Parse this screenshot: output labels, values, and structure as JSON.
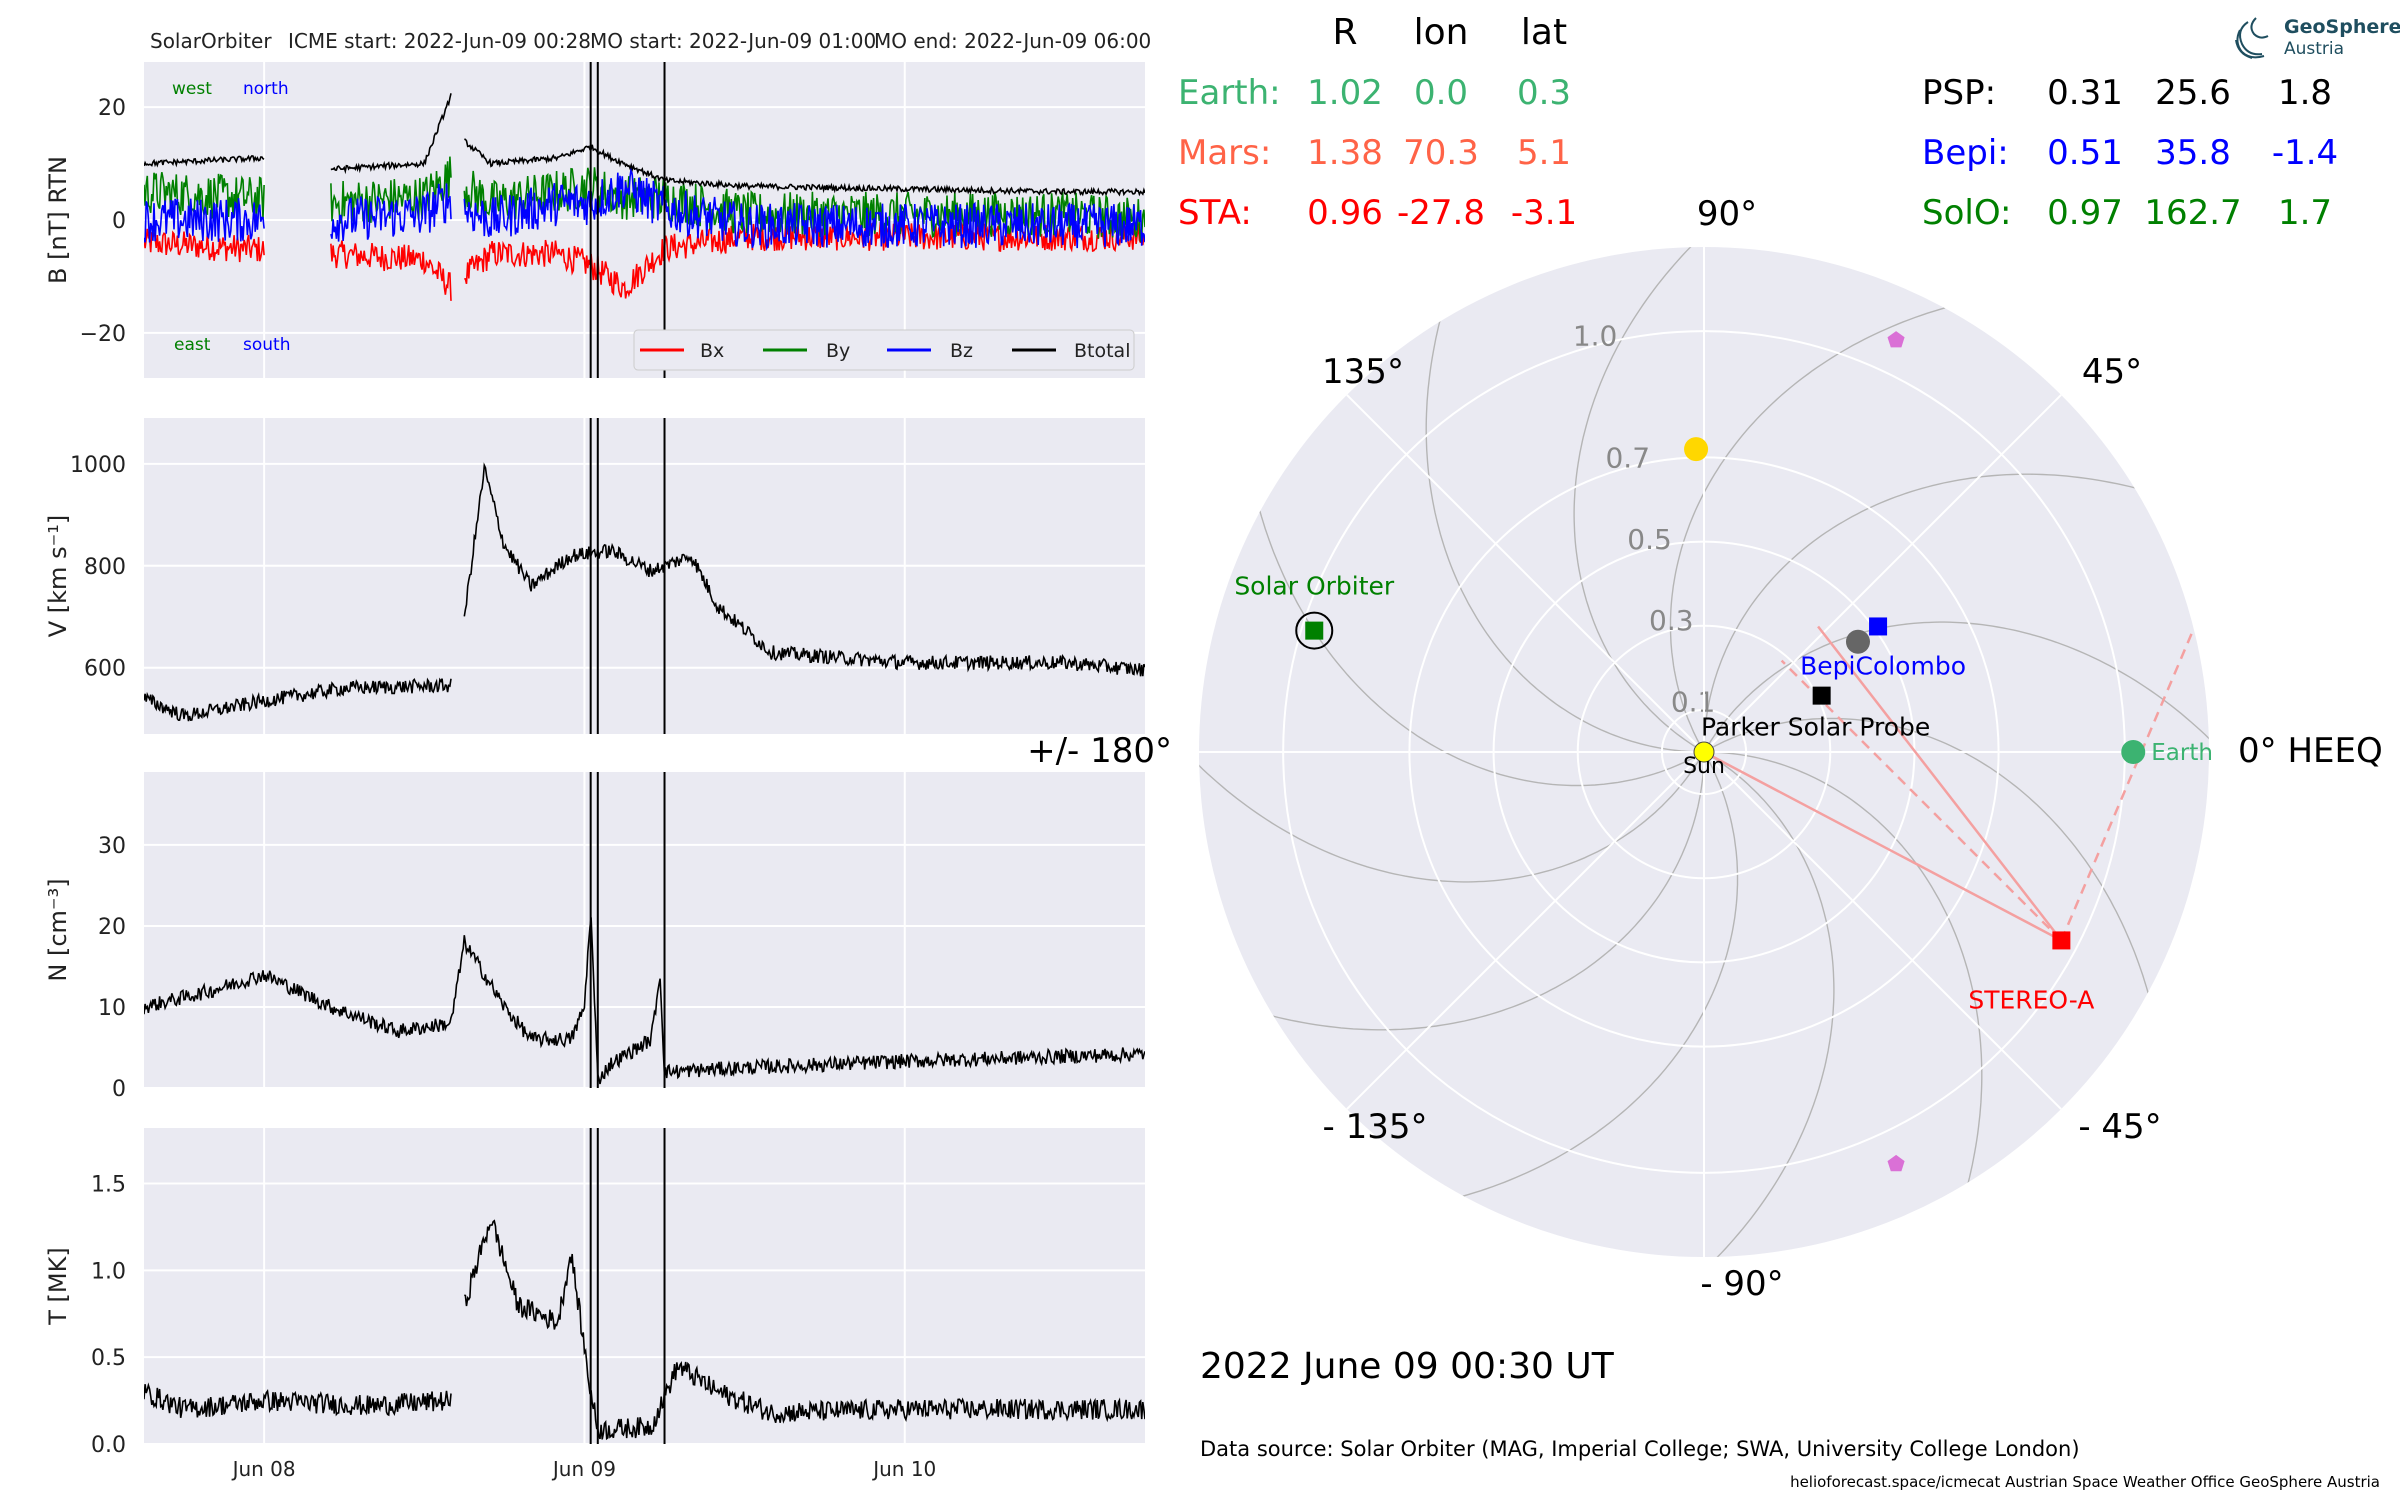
{
  "header": {
    "spacecraft": "SolarOrbiter",
    "icme_start": "ICME start: 2022-Jun-09 00:28",
    "mo_start": "MO start: 2022-Jun-09 01:00",
    "mo_end": "MO end: 2022-Jun-09 06:00"
  },
  "logo": {
    "line1": "GeoSphere",
    "line2": "Austria"
  },
  "position_table": {
    "columns": [
      "R",
      "lon",
      "lat"
    ],
    "left_rows": [
      {
        "name": "Earth:",
        "R": "1.02",
        "lon": "0.0",
        "lat": "0.3",
        "color": "#3cb371"
      },
      {
        "name": "Mars:",
        "R": "1.38",
        "lon": "70.3",
        "lat": "5.1",
        "color": "#ff6347"
      },
      {
        "name": "STA:",
        "R": "0.96",
        "lon": "-27.8",
        "lat": "-3.1",
        "color": "#ff0000"
      }
    ],
    "right_rows": [
      {
        "name": "PSP:",
        "R": "0.31",
        "lon": "25.6",
        "lat": "1.8",
        "color": "#000000"
      },
      {
        "name": "Bepi:",
        "R": "0.51",
        "lon": "35.8",
        "lat": "-1.4",
        "color": "#0000ff"
      },
      {
        "name": "SolO:",
        "R": "0.97",
        "lon": "162.7",
        "lat": "1.7",
        "color": "#008000"
      }
    ]
  },
  "polar": {
    "angle_labels": [
      "90°",
      "45°",
      "0° HEEQ",
      "- 45°",
      "- 90°",
      "- 135°",
      "+/- 180°",
      "135°"
    ],
    "radial_labels": [
      "0.1",
      "0.3",
      "0.5",
      "0.7",
      "1.0"
    ],
    "bodies": [
      {
        "label": "Sun",
        "r": 0.0,
        "lon": 0.0,
        "color": "#ffff00"
      },
      {
        "label": "Earth",
        "r": 1.02,
        "lon": 0.0,
        "color": "#3cb371"
      },
      {
        "label": "Parker Solar Probe",
        "r": 0.31,
        "lon": 25.6,
        "color": "#000000"
      },
      {
        "label": "BepiColombo",
        "r": 0.51,
        "lon": 35.8,
        "color": "#0000ff"
      },
      {
        "label": "Solar Orbiter",
        "r": 0.97,
        "lon": 162.7,
        "color": "#008000"
      },
      {
        "label": "STEREO-A",
        "r": 0.96,
        "lon": -27.8,
        "color": "#ff0000"
      }
    ],
    "extra_markers": [
      {
        "kind": "yellow-dot",
        "r": 0.72,
        "lon": 91.5,
        "color": "#ffd700"
      },
      {
        "kind": "grey-dot",
        "r": 0.45,
        "lon": 35.6,
        "color": "#666666"
      },
      {
        "kind": "pentagon",
        "r": 1.08,
        "lon": 65.0,
        "color": "#da70d6"
      },
      {
        "kind": "pentagon",
        "r": 1.08,
        "lon": -65.0,
        "color": "#da70d6"
      }
    ]
  },
  "date_text": "2022 June 09  00:30 UT",
  "data_source": "Data source: Solar Orbiter (MAG, Imperial College; SWA, University College London)",
  "footer": "helioforecast.space/icmecat   Austrian Space Weather Office   GeoSphere Austria",
  "chart_data": [
    {
      "type": "line",
      "panel": "magnetic field",
      "ylabel": "B [nT] RTN",
      "ylim": [
        -28,
        28
      ],
      "yticks": [
        "20",
        "0",
        "−20"
      ],
      "x_tick_labels": [
        "Jun 08",
        "Jun 09",
        "Jun 10"
      ],
      "x_range": [
        "2022-06-07 15:00",
        "2022-06-10 18:00"
      ],
      "corner_labels": {
        "west": "west",
        "north": "north",
        "east": "east",
        "south": "south"
      },
      "legend_placement": "lower-right",
      "event_lines": [
        "2022-06-09 00:28",
        "2022-06-09 01:00",
        "2022-06-09 06:00"
      ],
      "data_gaps": [
        [
          "2022-06-08 00:00",
          "2022-06-08 05:00"
        ],
        [
          "2022-06-08 14:00",
          "2022-06-08 15:00"
        ]
      ],
      "series": [
        {
          "name": "Bx",
          "color": "#ff0000",
          "x": [
            "2022-06-07 15:00",
            "2022-06-08 05:00",
            "2022-06-08 12:00",
            "2022-06-08 14:00",
            "2022-06-08 15:00",
            "2022-06-08 17:00",
            "2022-06-08 22:00",
            "2022-06-09 00:28",
            "2022-06-09 03:00",
            "2022-06-09 06:00",
            "2022-06-09 12:00",
            "2022-06-10 00:00",
            "2022-06-10 12:00",
            "2022-06-10 18:00"
          ],
          "values": [
            -4,
            -6,
            -7,
            -12,
            -10,
            -6,
            -6,
            -8,
            -12,
            -5,
            -3,
            -3,
            -3,
            -3
          ],
          "noise": 2.5
        },
        {
          "name": "By",
          "color": "#008000",
          "x": [
            "2022-06-07 15:00",
            "2022-06-08 05:00",
            "2022-06-08 12:00",
            "2022-06-08 14:00",
            "2022-06-08 15:00",
            "2022-06-08 17:00",
            "2022-06-08 22:00",
            "2022-06-09 00:28",
            "2022-06-09 03:00",
            "2022-06-09 06:00",
            "2022-06-09 12:00",
            "2022-06-10 00:00",
            "2022-06-10 12:00",
            "2022-06-10 18:00"
          ],
          "values": [
            5,
            3,
            4,
            8,
            6,
            3,
            5,
            6,
            4,
            4,
            1,
            1,
            1,
            0
          ],
          "noise": 4.0
        },
        {
          "name": "Bz",
          "color": "#0000ff",
          "x": [
            "2022-06-07 15:00",
            "2022-06-08 05:00",
            "2022-06-08 12:00",
            "2022-06-08 14:00",
            "2022-06-08 15:00",
            "2022-06-08 17:00",
            "2022-06-08 22:00",
            "2022-06-09 00:28",
            "2022-06-09 03:00",
            "2022-06-09 06:00",
            "2022-06-09 12:00",
            "2022-06-10 00:00",
            "2022-06-10 12:00",
            "2022-06-10 18:00"
          ],
          "values": [
            0,
            0,
            1,
            4,
            2,
            0,
            3,
            3,
            6,
            2,
            -1,
            -1,
            -1,
            -1
          ],
          "noise": 4.0
        },
        {
          "name": "Btotal",
          "color": "#000000",
          "x": [
            "2022-06-07 15:00",
            "2022-06-08 00:00",
            "2022-06-08 05:00",
            "2022-06-08 12:00",
            "2022-06-08 14:00",
            "2022-06-08 15:00",
            "2022-06-08 17:00",
            "2022-06-08 22:00",
            "2022-06-09 00:28",
            "2022-06-09 02:00",
            "2022-06-09 06:00",
            "2022-06-09 12:00",
            "2022-06-10 00:00",
            "2022-06-10 12:00",
            "2022-06-10 18:00"
          ],
          "values": [
            10,
            11,
            9,
            10,
            22,
            14,
            10,
            11,
            13,
            11,
            7,
            6,
            5.5,
            5,
            5
          ],
          "noise": 0.5
        }
      ]
    },
    {
      "type": "line",
      "panel": "speed",
      "ylabel": "V [km s⁻¹]",
      "ylim": [
        470,
        1090
      ],
      "yticks": [
        "1000",
        "800",
        "600"
      ],
      "x_tick_labels": [
        "Jun 08",
        "Jun 09",
        "Jun 10"
      ],
      "event_lines": [
        "2022-06-09 00:28",
        "2022-06-09 01:00",
        "2022-06-09 06:00"
      ],
      "data_gaps": [
        [
          "2022-06-08 14:00",
          "2022-06-08 15:00"
        ]
      ],
      "series": [
        {
          "name": "V",
          "color": "#000000",
          "x": [
            "2022-06-07 15:00",
            "2022-06-07 18:00",
            "2022-06-08 00:00",
            "2022-06-08 06:00",
            "2022-06-08 14:00",
            "2022-06-08 15:00",
            "2022-06-08 16:30",
            "2022-06-08 18:00",
            "2022-06-08 20:00",
            "2022-06-08 23:00",
            "2022-06-09 02:00",
            "2022-06-09 05:00",
            "2022-06-09 08:00",
            "2022-06-09 10:00",
            "2022-06-09 14:00",
            "2022-06-10 00:00",
            "2022-06-10 12:00",
            "2022-06-10 18:00"
          ],
          "values": [
            540,
            505,
            535,
            560,
            565,
            700,
            990,
            840,
            760,
            820,
            830,
            790,
            820,
            720,
            630,
            610,
            610,
            595
          ],
          "noise": 14
        }
      ]
    },
    {
      "type": "line",
      "panel": "density",
      "ylabel": "N [cm⁻³]",
      "ylim": [
        0,
        39
      ],
      "yticks": [
        "30",
        "20",
        "10",
        "0"
      ],
      "x_tick_labels": [
        "Jun 08",
        "Jun 09",
        "Jun 10"
      ],
      "event_lines": [
        "2022-06-09 00:28",
        "2022-06-09 01:00",
        "2022-06-09 06:00"
      ],
      "series": [
        {
          "name": "N",
          "color": "#000000",
          "x": [
            "2022-06-07 15:00",
            "2022-06-07 20:00",
            "2022-06-08 00:00",
            "2022-06-08 05:00",
            "2022-06-08 10:00",
            "2022-06-08 14:00",
            "2022-06-08 15:00",
            "2022-06-08 18:00",
            "2022-06-08 20:00",
            "2022-06-08 23:00",
            "2022-06-09 00:00",
            "2022-06-09 00:28",
            "2022-06-09 01:00",
            "2022-06-09 02:00",
            "2022-06-09 05:00",
            "2022-06-09 05:40",
            "2022-06-09 06:00",
            "2022-06-09 12:00",
            "2022-06-10 00:00",
            "2022-06-10 18:00"
          ],
          "values": [
            10,
            12,
            14,
            10,
            7,
            8,
            18,
            10,
            6,
            6,
            10,
            22,
            1,
            3,
            6,
            14,
            2,
            2.5,
            3.3,
            4.2
          ],
          "noise": 0.9
        }
      ]
    },
    {
      "type": "line",
      "panel": "temperature",
      "ylabel": "T [MK]",
      "ylim": [
        0,
        1.82
      ],
      "yticks": [
        "1.5",
        "1.0",
        "0.5",
        "0.0"
      ],
      "x_tick_labels": [
        "Jun 08",
        "Jun 09",
        "Jun 10"
      ],
      "event_lines": [
        "2022-06-09 00:28",
        "2022-06-09 01:00",
        "2022-06-09 06:00"
      ],
      "data_gaps": [
        [
          "2022-06-08 14:00",
          "2022-06-08 15:00"
        ]
      ],
      "series": [
        {
          "name": "T",
          "color": "#000000",
          "x": [
            "2022-06-07 15:00",
            "2022-06-07 18:00",
            "2022-06-08 00:00",
            "2022-06-08 08:00",
            "2022-06-08 14:00",
            "2022-06-08 15:00",
            "2022-06-08 17:00",
            "2022-06-08 19:00",
            "2022-06-08 22:00",
            "2022-06-08 23:00",
            "2022-06-09 00:28",
            "2022-06-09 01:00",
            "2022-06-09 05:00",
            "2022-06-09 07:00",
            "2022-06-09 10:00",
            "2022-06-09 14:00",
            "2022-06-10 00:00",
            "2022-06-10 18:00"
          ],
          "values": [
            0.3,
            0.2,
            0.25,
            0.22,
            0.25,
            0.8,
            1.3,
            0.8,
            0.7,
            1.1,
            0.3,
            0.08,
            0.1,
            0.45,
            0.3,
            0.18,
            0.2,
            0.2
          ],
          "noise": 0.06
        }
      ]
    }
  ]
}
